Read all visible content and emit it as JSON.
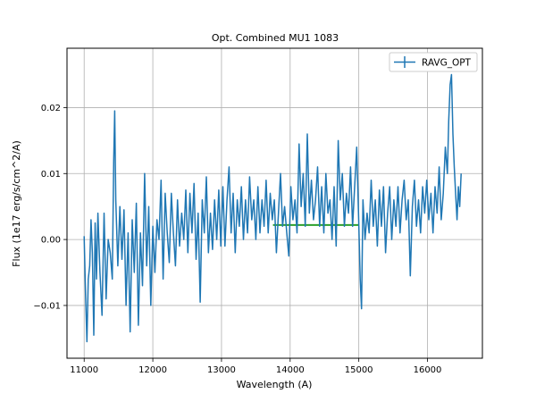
{
  "chart_data": {
    "type": "line",
    "title": "Opt. Combined MU1 1083",
    "xlabel": "Wavelength (A)",
    "ylabel": "Flux (1e17 erg/s/cm^2/A)",
    "xlim": [
      10750,
      16800
    ],
    "ylim": [
      -0.018,
      0.029
    ],
    "xticks": [
      11000,
      12000,
      13000,
      14000,
      15000,
      16000
    ],
    "xtick_labels": [
      "11000",
      "12000",
      "13000",
      "14000",
      "15000",
      "16000"
    ],
    "yticks": [
      -0.01,
      0.0,
      0.01,
      0.02
    ],
    "ytick_labels": [
      "−0.01",
      "0.00",
      "0.01",
      "0.02"
    ],
    "grid": true,
    "legend": {
      "position": "upper-right",
      "entries": [
        "RAVG_OPT"
      ]
    },
    "colors": {
      "series": "#1f77b4",
      "fit": "#2ca02c",
      "grid": "#b0b0b0"
    },
    "fit_line": {
      "x": [
        13750,
        15000
      ],
      "y": [
        0.0022,
        0.0022
      ]
    },
    "series": [
      {
        "name": "RAVG_OPT",
        "anchors": [
          [
            11000,
            0.0005
          ],
          [
            11020,
            -0.0085
          ],
          [
            11040,
            -0.0155
          ],
          [
            11060,
            -0.006
          ],
          [
            11080,
            -0.004
          ],
          [
            11100,
            0.003
          ],
          [
            11120,
            -0.002
          ],
          [
            11140,
            -0.0145
          ],
          [
            11160,
            0.0025
          ],
          [
            11180,
            -0.006
          ],
          [
            11200,
            0.004
          ],
          [
            11230,
            -0.005
          ],
          [
            11260,
            -0.0115
          ],
          [
            11290,
            0.004
          ],
          [
            11320,
            -0.009
          ],
          [
            11350,
            0.0
          ],
          [
            11380,
            -0.002
          ],
          [
            11410,
            -0.006
          ],
          [
            11430,
            0.012
          ],
          [
            11445,
            0.0195
          ],
          [
            11460,
            0.006
          ],
          [
            11490,
            -0.004
          ],
          [
            11520,
            0.005
          ],
          [
            11550,
            -0.003
          ],
          [
            11580,
            0.0045
          ],
          [
            11610,
            -0.01
          ],
          [
            11640,
            0.001
          ],
          [
            11670,
            -0.014
          ],
          [
            11700,
            0.003
          ],
          [
            11730,
            -0.005
          ],
          [
            11760,
            0.0055
          ],
          [
            11790,
            -0.013
          ],
          [
            11820,
            0.001
          ],
          [
            11850,
            -0.007
          ],
          [
            11880,
            0.01
          ],
          [
            11910,
            -0.004
          ],
          [
            11940,
            0.005
          ],
          [
            11970,
            -0.01
          ],
          [
            12000,
            0.002
          ],
          [
            12030,
            -0.005
          ],
          [
            12060,
            0.003
          ],
          [
            12090,
            0.0
          ],
          [
            12120,
            0.009
          ],
          [
            12150,
            -0.006
          ],
          [
            12180,
            0.007
          ],
          [
            12210,
            0.001
          ],
          [
            12240,
            -0.0035
          ],
          [
            12270,
            0.007
          ],
          [
            12300,
            0.001
          ],
          [
            12330,
            -0.004
          ],
          [
            12360,
            0.006
          ],
          [
            12390,
            -0.001
          ],
          [
            12420,
            0.004
          ],
          [
            12450,
            0.0
          ],
          [
            12480,
            0.0075
          ],
          [
            12510,
            -0.002
          ],
          [
            12540,
            0.007
          ],
          [
            12570,
            0.001
          ],
          [
            12600,
            0.0085
          ],
          [
            12630,
            -0.003
          ],
          [
            12660,
            0.004
          ],
          [
            12690,
            -0.0095
          ],
          [
            12720,
            0.006
          ],
          [
            12750,
            0.001
          ],
          [
            12780,
            0.0095
          ],
          [
            12810,
            -0.002
          ],
          [
            12840,
            0.004
          ],
          [
            12870,
            -0.0015
          ],
          [
            12900,
            0.006
          ],
          [
            12930,
            0.0
          ],
          [
            12960,
            0.0075
          ],
          [
            12990,
            -0.001
          ],
          [
            13020,
            0.008
          ],
          [
            13050,
            -0.001
          ],
          [
            13080,
            0.006
          ],
          [
            13110,
            0.011
          ],
          [
            13140,
            0.001
          ],
          [
            13170,
            0.007
          ],
          [
            13200,
            -0.002
          ],
          [
            13230,
            0.006
          ],
          [
            13260,
            0.002
          ],
          [
            13290,
            0.008
          ],
          [
            13320,
            0.0
          ],
          [
            13350,
            0.006
          ],
          [
            13380,
            0.001
          ],
          [
            13410,
            0.0095
          ],
          [
            13440,
            0.003
          ],
          [
            13470,
            0.006
          ],
          [
            13500,
            0.0
          ],
          [
            13530,
            0.008
          ],
          [
            13560,
            0.001
          ],
          [
            13590,
            0.006
          ],
          [
            13620,
            0.002
          ],
          [
            13650,
            0.009
          ],
          [
            13680,
            0.001
          ],
          [
            13710,
            0.007
          ],
          [
            13740,
            0.003
          ],
          [
            13770,
            0.006
          ],
          [
            13800,
            -0.002
          ],
          [
            13830,
            0.004
          ],
          [
            13860,
            0.01
          ],
          [
            13890,
            0.002
          ],
          [
            13920,
            0.005
          ],
          [
            13950,
            0.001
          ],
          [
            13980,
            -0.0025
          ],
          [
            14010,
            0.008
          ],
          [
            14040,
            0.003
          ],
          [
            14070,
            0.006
          ],
          [
            14100,
            0.001
          ],
          [
            14130,
            0.0145
          ],
          [
            14160,
            0.005
          ],
          [
            14190,
            0.01
          ],
          [
            14220,
            0.002
          ],
          [
            14250,
            0.016
          ],
          [
            14280,
            0.004
          ],
          [
            14310,
            0.009
          ],
          [
            14340,
            0.003
          ],
          [
            14370,
            0.006
          ],
          [
            14400,
            0.011
          ],
          [
            14430,
            0.002
          ],
          [
            14460,
            0.008
          ],
          [
            14490,
            0.001
          ],
          [
            14520,
            0.01
          ],
          [
            14550,
            0.004
          ],
          [
            14580,
            0.006
          ],
          [
            14610,
            0.0
          ],
          [
            14640,
            0.008
          ],
          [
            14670,
            -0.001
          ],
          [
            14700,
            0.015
          ],
          [
            14730,
            0.006
          ],
          [
            14760,
            0.01
          ],
          [
            14790,
            0.002
          ],
          [
            14820,
            0.007
          ],
          [
            14850,
            0.004
          ],
          [
            14880,
            0.011
          ],
          [
            14910,
            0.002
          ],
          [
            14940,
            0.008
          ],
          [
            14970,
            0.014
          ],
          [
            15000,
            0.002
          ],
          [
            15020,
            -0.006
          ],
          [
            15040,
            -0.0105
          ],
          [
            15060,
            0.006
          ],
          [
            15090,
            0.0
          ],
          [
            15120,
            0.004
          ],
          [
            15150,
            0.001
          ],
          [
            15180,
            0.009
          ],
          [
            15210,
            0.002
          ],
          [
            15240,
            0.006
          ],
          [
            15270,
            -0.001
          ],
          [
            15300,
            0.0075
          ],
          [
            15330,
            0.002
          ],
          [
            15360,
            0.008
          ],
          [
            15390,
            -0.002
          ],
          [
            15420,
            0.004
          ],
          [
            15450,
            0.008
          ],
          [
            15480,
            0.0
          ],
          [
            15510,
            0.006
          ],
          [
            15540,
            0.002
          ],
          [
            15570,
            0.008
          ],
          [
            15600,
            0.001
          ],
          [
            15630,
            0.006
          ],
          [
            15660,
            0.009
          ],
          [
            15690,
            0.003
          ],
          [
            15720,
            0.006
          ],
          [
            15750,
            -0.0055
          ],
          [
            15780,
            0.005
          ],
          [
            15810,
            0.009
          ],
          [
            15840,
            0.002
          ],
          [
            15870,
            0.006
          ],
          [
            15900,
            0.001
          ],
          [
            15930,
            0.008
          ],
          [
            15960,
            0.004
          ],
          [
            15990,
            0.009
          ],
          [
            16020,
            0.003
          ],
          [
            16050,
            0.007
          ],
          [
            16080,
            0.001
          ],
          [
            16110,
            0.008
          ],
          [
            16140,
            0.004
          ],
          [
            16170,
            0.011
          ],
          [
            16200,
            0.003
          ],
          [
            16230,
            0.007
          ],
          [
            16260,
            0.014
          ],
          [
            16290,
            0.01
          ],
          [
            16310,
            0.018
          ],
          [
            16330,
            0.0235
          ],
          [
            16350,
            0.025
          ],
          [
            16370,
            0.016
          ],
          [
            16390,
            0.011
          ],
          [
            16410,
            0.007
          ],
          [
            16430,
            0.003
          ],
          [
            16450,
            0.008
          ],
          [
            16470,
            0.005
          ],
          [
            16490,
            0.01
          ]
        ]
      }
    ]
  }
}
